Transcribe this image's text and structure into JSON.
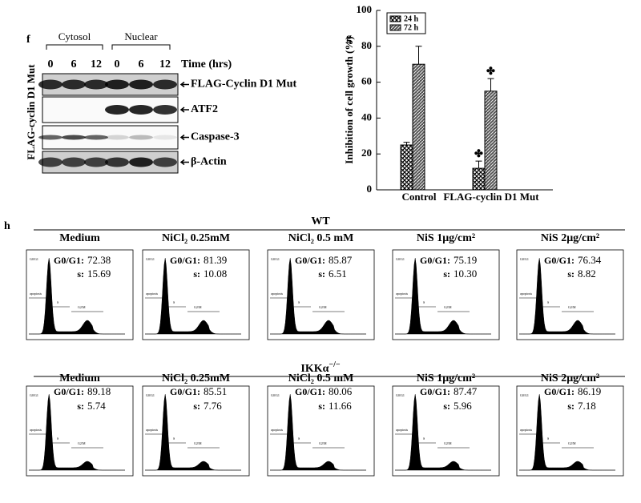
{
  "panel_f": {
    "label": "f",
    "groups": [
      "Cytosol",
      "Nuclear"
    ],
    "time_points": [
      "0",
      "6",
      "12",
      "0",
      "6",
      "12"
    ],
    "time_label": "Time (hrs)",
    "side_label": "FLAG-cyclin D1 Mut",
    "blots": [
      "FLAG-Cyclin D1 Mut",
      "ATF2",
      "Caspase-3",
      "β-Actin"
    ]
  },
  "chart_data": {
    "type": "bar",
    "panel_label": "g",
    "y_label": "Inhibition of cell growth (%)",
    "categories": [
      "Control",
      "FLAG-cyclin D1 Mut"
    ],
    "series": [
      {
        "name": "24 h",
        "pattern": "crosshatch",
        "values": [
          25,
          12
        ],
        "errors": [
          1.5,
          4
        ],
        "markers": [
          null,
          "✤"
        ]
      },
      {
        "name": "72 h",
        "pattern": "diagonal",
        "values": [
          70,
          55
        ],
        "errors": [
          10,
          7
        ],
        "markers": [
          null,
          "✤"
        ]
      }
    ],
    "ylim": [
      0,
      100
    ],
    "yticks": [
      0,
      20,
      40,
      60,
      80,
      100
    ],
    "legend": "upper-left"
  },
  "panel_h": {
    "label": "h",
    "g0g1_label": "G0/G1:",
    "s_label": "s:",
    "gate_labels": [
      "G0/G1",
      "apoptosis",
      "S",
      "G2/M"
    ],
    "rows": [
      {
        "genotype": "WT",
        "genotype_sup": null,
        "samples": [
          {
            "title": "Medium",
            "g0g1": "72.38",
            "s": "15.69"
          },
          {
            "title": "NiCl₂ 0.25mM",
            "g0g1": "81.39",
            "s": "10.08"
          },
          {
            "title": "NiCl₂ 0.5 mM",
            "g0g1": "85.87",
            "s": "6.51"
          },
          {
            "title": "NiS 1μg/cm²",
            "g0g1": "75.19",
            "s": "10.30"
          },
          {
            "title": "NiS 2μg/cm²",
            "g0g1": "76.34",
            "s": "8.82"
          }
        ]
      },
      {
        "genotype": "IKKα",
        "genotype_sup": "−/−",
        "samples": [
          {
            "title": "Medium",
            "g0g1": "89.18",
            "s": "5.74"
          },
          {
            "title": "NiCl₂ 0.25mM",
            "g0g1": "85.51",
            "s": "7.76"
          },
          {
            "title": "NiCl₂ 0.5 mM",
            "g0g1": "80.06",
            "s": "11.66"
          },
          {
            "title": "NiS 1μg/cm²",
            "g0g1": "87.47",
            "s": "5.96"
          },
          {
            "title": "NiS 2μg/cm²",
            "g0g1": "86.19",
            "s": "7.18"
          }
        ]
      }
    ]
  }
}
